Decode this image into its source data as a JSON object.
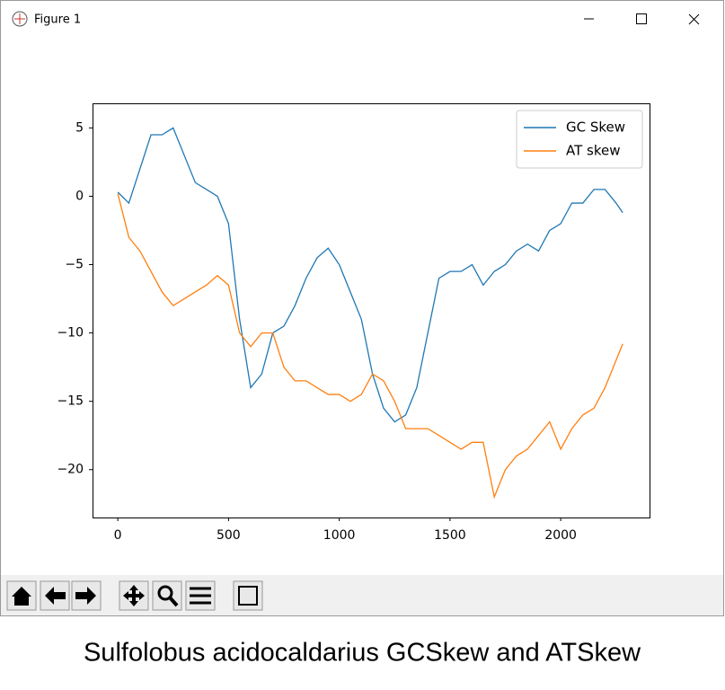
{
  "window": {
    "title": "Figure 1"
  },
  "caption": "Sulfolobus acidocaldarius GCSkew and ATSkew",
  "chart_data": {
    "type": "line",
    "x": [
      0,
      50,
      100,
      150,
      200,
      250,
      300,
      350,
      400,
      450,
      500,
      550,
      600,
      650,
      700,
      750,
      800,
      850,
      900,
      950,
      1000,
      1050,
      1100,
      1150,
      1200,
      1250,
      1300,
      1350,
      1400,
      1450,
      1500,
      1550,
      1600,
      1650,
      1700,
      1750,
      1800,
      1850,
      1900,
      1950,
      2000,
      2050,
      2100,
      2150,
      2200,
      2250,
      2280
    ],
    "series": [
      {
        "name": "GC Skew",
        "color": "#1f77b4",
        "values": [
          0.3,
          -0.5,
          2,
          4.5,
          4.5,
          5,
          3,
          1,
          0.5,
          0,
          -2,
          -9,
          -14,
          -13,
          -10,
          -9.5,
          -8,
          -6,
          -4.5,
          -3.8,
          -5,
          -7,
          -9,
          -13,
          -15.5,
          -16.5,
          -16,
          -14,
          -10,
          -6,
          -5.5,
          -5.5,
          -5,
          -6.5,
          -5.5,
          -5,
          -4,
          -3.5,
          -4,
          -2.5,
          -2,
          -0.5,
          -0.5,
          0.5,
          0.5,
          -0.5,
          -1.2
        ]
      },
      {
        "name": "AT skew",
        "color": "#ff7f0e",
        "values": [
          0.2,
          -3,
          -4,
          -5.5,
          -7,
          -8,
          -7.5,
          -7,
          -6.5,
          -5.8,
          -6.5,
          -10,
          -11,
          -10,
          -10,
          -12.5,
          -13.5,
          -13.5,
          -14,
          -14.5,
          -14.5,
          -15,
          -14.5,
          -13,
          -13.5,
          -15,
          -17,
          -17,
          -17,
          -17.5,
          -18,
          -18.5,
          -18,
          -18,
          -22,
          -20,
          -19,
          -18.5,
          -17.5,
          -16.5,
          -18.5,
          -17,
          -16,
          -15.5,
          -14,
          -12,
          -10.8
        ]
      }
    ],
    "xlim": [
      -114,
      2401
    ],
    "ylim": [
      -23.5,
      6.8
    ],
    "xticks": [
      0,
      500,
      1000,
      1500,
      2000
    ],
    "yticks": [
      5,
      0,
      {
        "value": -5,
        "label": "−5"
      },
      {
        "value": -10,
        "label": "−10"
      },
      {
        "value": -15,
        "label": "−15"
      },
      {
        "value": -20,
        "label": "−20"
      }
    ],
    "legend": "upper right"
  }
}
